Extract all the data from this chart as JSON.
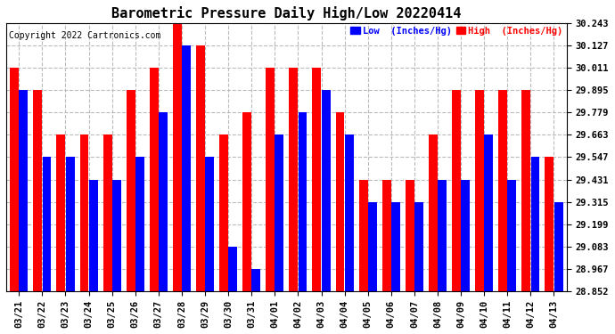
{
  "title": "Barometric Pressure Daily High/Low 20220414",
  "copyright": "Copyright 2022 Cartronics.com",
  "legend_low": "Low  (Inches/Hg)",
  "legend_high": "High  (Inches/Hg)",
  "dates": [
    "03/21",
    "03/22",
    "03/23",
    "03/24",
    "03/25",
    "03/26",
    "03/27",
    "03/28",
    "03/29",
    "03/30",
    "03/31",
    "04/01",
    "04/02",
    "04/03",
    "04/04",
    "04/05",
    "04/06",
    "04/07",
    "04/08",
    "04/09",
    "04/10",
    "04/11",
    "04/12",
    "04/13"
  ],
  "high": [
    30.011,
    29.895,
    29.663,
    29.663,
    29.663,
    29.895,
    30.011,
    30.243,
    30.127,
    29.663,
    29.779,
    30.011,
    30.011,
    30.011,
    29.779,
    29.431,
    29.431,
    29.431,
    29.663,
    29.895,
    29.895,
    29.895,
    29.895,
    29.547
  ],
  "low": [
    29.895,
    29.547,
    29.547,
    29.431,
    29.431,
    29.547,
    29.779,
    30.127,
    29.547,
    29.083,
    28.967,
    29.663,
    29.779,
    29.895,
    29.663,
    29.315,
    29.315,
    29.315,
    29.431,
    29.431,
    29.663,
    29.431,
    29.547,
    29.315
  ],
  "ymin": 28.852,
  "ymax": 30.243,
  "yticks": [
    28.852,
    28.967,
    29.083,
    29.199,
    29.315,
    29.431,
    29.547,
    29.663,
    29.779,
    29.895,
    30.011,
    30.127,
    30.243
  ],
  "bar_color_high": "#ff0000",
  "bar_color_low": "#0000ff",
  "background_color": "#ffffff",
  "grid_color": "#bbbbbb",
  "title_fontsize": 11,
  "tick_fontsize": 7.5,
  "copyright_fontsize": 7
}
